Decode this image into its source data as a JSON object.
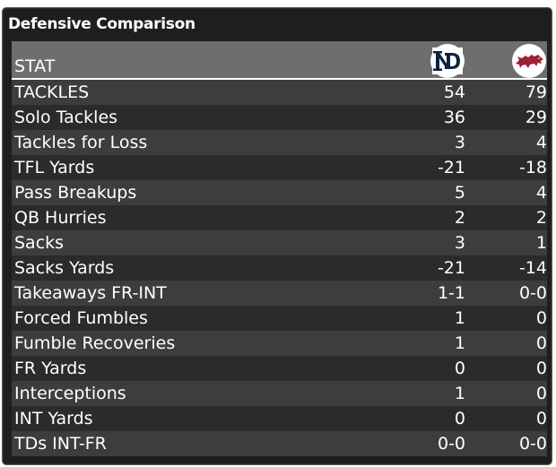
{
  "panel": {
    "title": "Defensive Comparison"
  },
  "header": {
    "stat_label": "STAT",
    "team1_icon": "notre-dame-logo-icon",
    "team2_icon": "arkansas-razorback-logo-icon"
  },
  "colors": {
    "background": "#1e1e1e",
    "header_bg": "#6e6e6e",
    "row_odd": "#3d3d3d",
    "row_even": "#2b2b2b",
    "nd_navy": "#0c2340",
    "ark_red": "#9d2235"
  },
  "rows": [
    {
      "stat": "TACKLES",
      "team1": "54",
      "team2": "79"
    },
    {
      "stat": "Solo Tackles",
      "team1": "36",
      "team2": "29"
    },
    {
      "stat": "Tackles for Loss",
      "team1": "3",
      "team2": "4"
    },
    {
      "stat": "TFL Yards",
      "team1": "-21",
      "team2": "-18"
    },
    {
      "stat": "Pass Breakups",
      "team1": "5",
      "team2": "4"
    },
    {
      "stat": "QB Hurries",
      "team1": "2",
      "team2": "2"
    },
    {
      "stat": "Sacks",
      "team1": "3",
      "team2": "1"
    },
    {
      "stat": "Sacks Yards",
      "team1": "-21",
      "team2": "-14"
    },
    {
      "stat": "Takeaways FR-INT",
      "team1": "1-1",
      "team2": "0-0"
    },
    {
      "stat": "Forced Fumbles",
      "team1": "1",
      "team2": "0"
    },
    {
      "stat": "Fumble Recoveries",
      "team1": "1",
      "team2": "0"
    },
    {
      "stat": "FR Yards",
      "team1": "0",
      "team2": "0"
    },
    {
      "stat": "Interceptions",
      "team1": "1",
      "team2": "0"
    },
    {
      "stat": "INT Yards",
      "team1": "0",
      "team2": "0"
    },
    {
      "stat": "TDs INT-FR",
      "team1": "0-0",
      "team2": "0-0"
    }
  ]
}
